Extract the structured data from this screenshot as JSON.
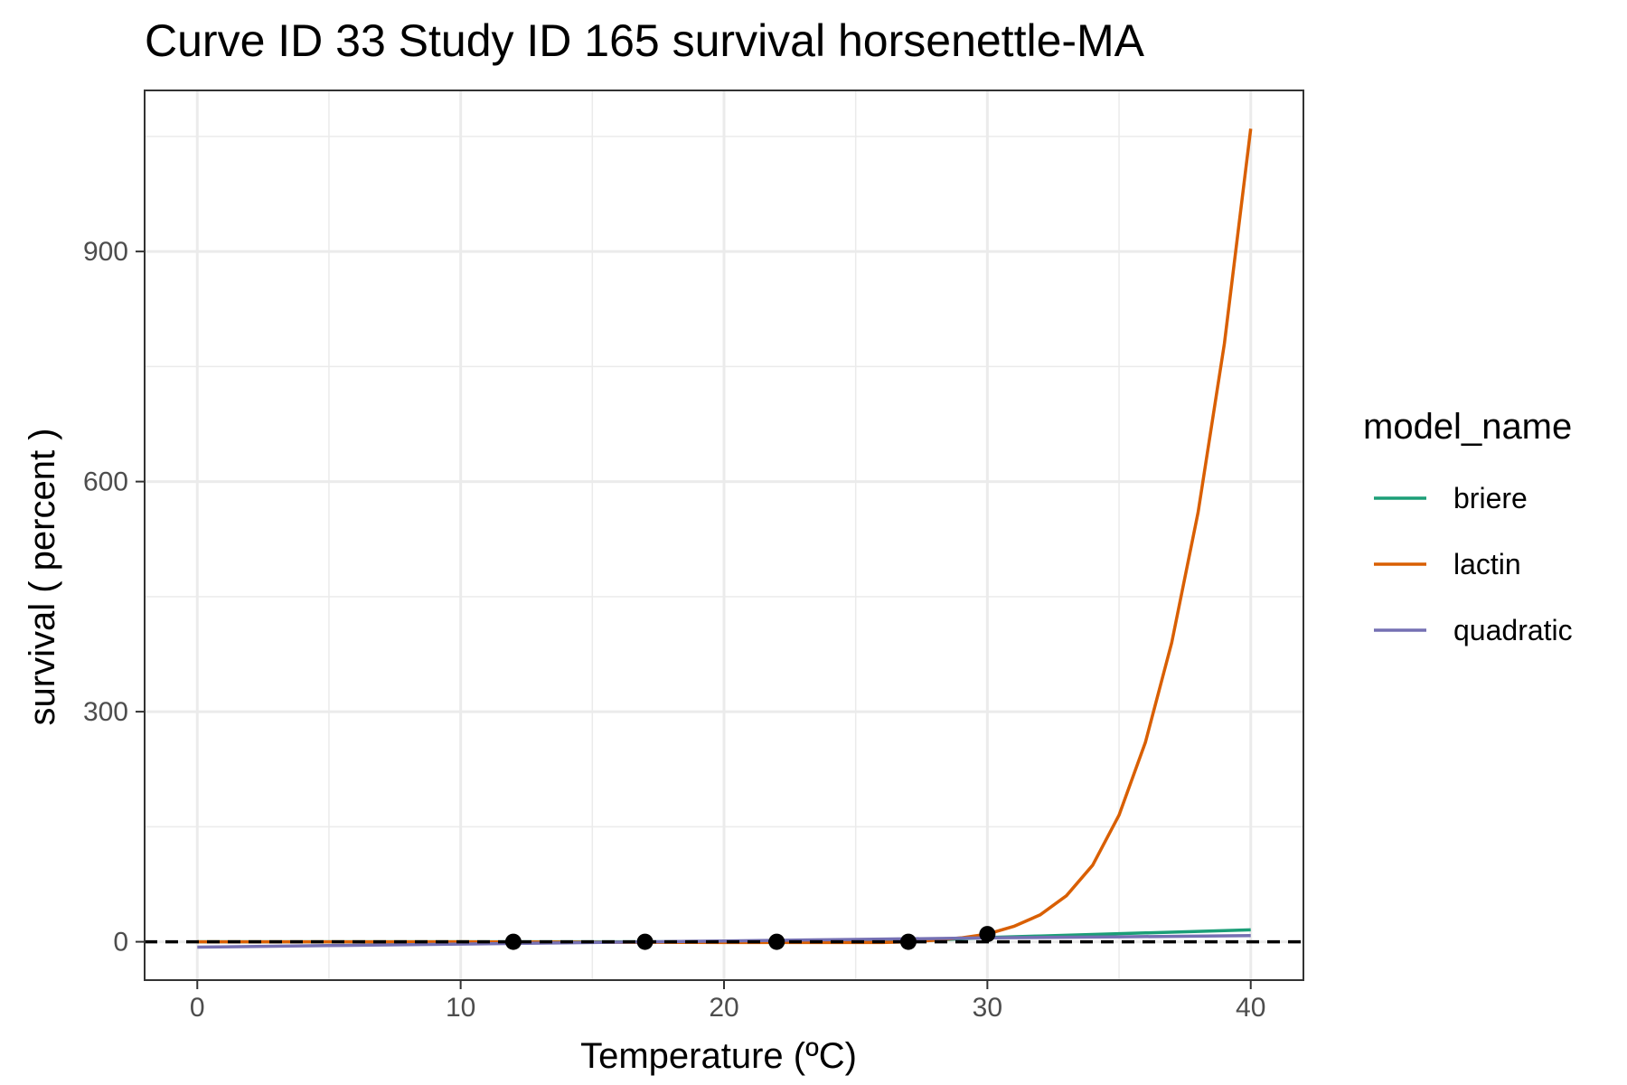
{
  "chart_data": {
    "type": "line",
    "title": "Curve ID 33 Study ID 165 survival horsenettle-MA",
    "xlabel": "Temperature (ºC)",
    "ylabel": "survival ( percent )",
    "xlim": [
      -2,
      42
    ],
    "ylim": [
      -50,
      1110
    ],
    "x_ticks": [
      0,
      10,
      20,
      30,
      40
    ],
    "x_tick_labels": [
      "0",
      "10",
      "20",
      "30",
      "40"
    ],
    "y_ticks": [
      0,
      300,
      600,
      900
    ],
    "y_tick_labels": [
      "0",
      "300",
      "600",
      "900"
    ],
    "x_minor": [
      5,
      15,
      25,
      35
    ],
    "y_minor": [
      150,
      450,
      750,
      1050
    ],
    "grid": true,
    "legend": {
      "title": "model_name",
      "placement": "right",
      "entries": [
        "briere",
        "lactin",
        "quadratic"
      ]
    },
    "reference_line": {
      "y": 0,
      "style": "dashed",
      "color": "#000000"
    },
    "points": {
      "x": [
        12,
        17,
        22,
        27,
        30
      ],
      "y": [
        0,
        0,
        0,
        0,
        10
      ],
      "color": "#000000"
    },
    "series": [
      {
        "name": "briere",
        "color": "#1b9e77",
        "x": [
          0,
          12,
          17,
          22,
          25,
          27,
          28,
          29,
          30,
          32,
          34,
          36,
          38,
          40
        ],
        "y": [
          0,
          0,
          0,
          0,
          0.5,
          1,
          2,
          4,
          5.5,
          7.5,
          9.5,
          11.5,
          13.5,
          15.5
        ]
      },
      {
        "name": "lactin",
        "color": "#d95f02",
        "x": [
          0,
          10,
          20,
          24,
          26,
          27,
          28,
          29,
          30,
          31,
          32,
          33,
          34,
          35,
          36,
          37,
          38,
          39,
          40
        ],
        "y": [
          0,
          0,
          -1,
          -1,
          -1,
          0,
          2,
          5,
          10,
          20,
          35,
          60,
          100,
          165,
          260,
          390,
          560,
          780,
          1060
        ]
      },
      {
        "name": "quadratic",
        "color": "#7570b3",
        "x": [
          0,
          5,
          10,
          15,
          20,
          25,
          30,
          35,
          40
        ],
        "y": [
          -7,
          -5,
          -3,
          -1,
          1,
          3,
          5,
          6.5,
          8
        ]
      }
    ]
  }
}
